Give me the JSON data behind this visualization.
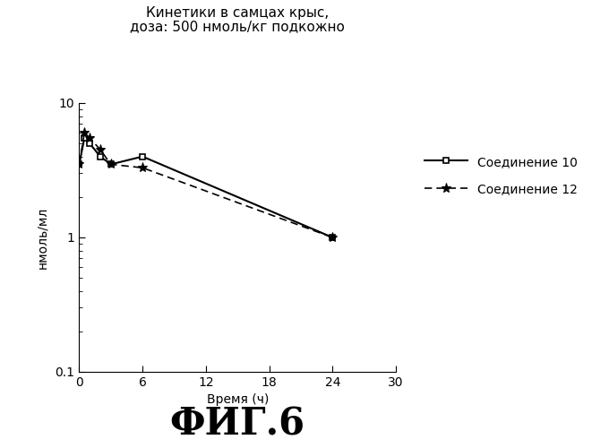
{
  "title_line1": "Кинетики в самцах крыс,",
  "title_line2": "доза: 500 нмоль/кг подкожно",
  "ylabel": "нмоль/мл",
  "xlabel": "Время (ч)",
  "figure_label": "ФИГ.6",
  "series1_label": "Соединение 10",
  "series2_label": "Соединение 12",
  "series1_x": [
    0,
    0.5,
    1,
    2,
    3,
    6,
    24
  ],
  "series1_y": [
    3.5,
    5.5,
    5.0,
    4.0,
    3.5,
    4.0,
    1.0
  ],
  "series2_x": [
    0,
    0.5,
    1,
    2,
    3,
    6,
    24
  ],
  "series2_y": [
    3.5,
    6.0,
    5.5,
    4.5,
    3.5,
    3.3,
    1.0
  ],
  "xlim": [
    0,
    30
  ],
  "ylim_log": [
    0.1,
    10
  ],
  "xticks": [
    0,
    6,
    12,
    18,
    24,
    30
  ],
  "background_color": "#ffffff",
  "series1_color": "#000000",
  "series2_color": "#000000",
  "title_fontsize": 11,
  "label_fontsize": 10,
  "legend_fontsize": 10,
  "tick_fontsize": 10,
  "fig_label_fontsize": 30
}
